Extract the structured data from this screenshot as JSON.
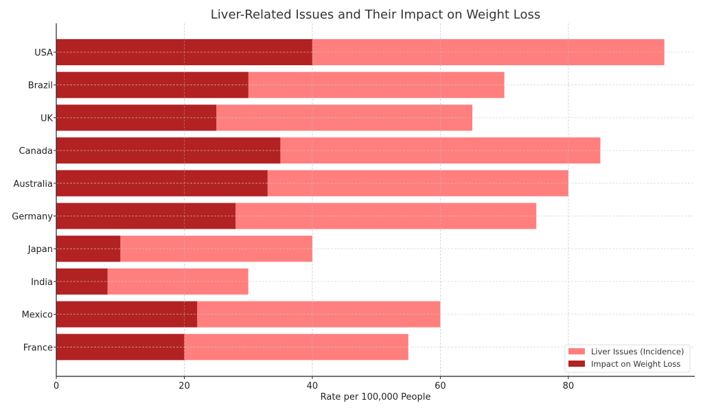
{
  "chart_data": {
    "type": "bar",
    "orientation": "horizontal",
    "stacking": "overlay",
    "title": "Liver-Related Issues and Their Impact on Weight Loss",
    "xlabel": "Rate per 100,000 People",
    "ylabel": "",
    "xlim": [
      0,
      99.75
    ],
    "xticks": [
      0,
      20,
      40,
      60,
      80
    ],
    "grid": true,
    "legend_position": "bottom-right",
    "categories": [
      "USA",
      "Brazil",
      "UK",
      "Canada",
      "Australia",
      "Germany",
      "Japan",
      "India",
      "Mexico",
      "France"
    ],
    "series": [
      {
        "name": "Liver Issues (Incidence)",
        "color": "#ff7f7f",
        "values": [
          95,
          70,
          65,
          85,
          80,
          75,
          40,
          30,
          60,
          55
        ]
      },
      {
        "name": "Impact on Weight Loss",
        "color": "#b22222",
        "values": [
          40,
          30,
          25,
          35,
          33,
          28,
          10,
          8,
          22,
          20
        ]
      }
    ]
  }
}
